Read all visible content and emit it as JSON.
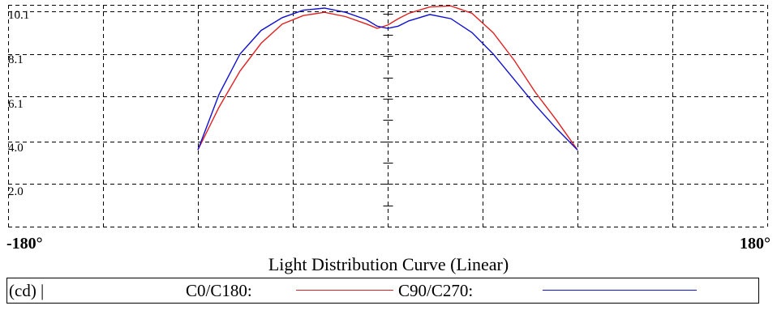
{
  "chart_data": {
    "type": "line",
    "title": "Light Distribution Curve (Linear)",
    "xlabel": "",
    "ylabel": "",
    "unit": "(cd) |",
    "x_tick_labels": [
      "-180°",
      "180°"
    ],
    "xlim": [
      -180,
      180
    ],
    "y_tick_labels": [
      "10.1",
      "8.1",
      "6.1",
      "4.0",
      "2.0"
    ],
    "y_ticks": [
      10.1,
      8.1,
      6.1,
      4.0,
      2.0
    ],
    "ylim": [
      0,
      10.4
    ],
    "grid": true,
    "legend_position": "bottom",
    "series": [
      {
        "name": "C0/C180:",
        "color": "#e02020",
        "x": [
          -90,
          -80,
          -70,
          -60,
          -50,
          -40,
          -30,
          -20,
          -10,
          -5,
          0,
          5,
          10,
          20,
          30,
          40,
          50,
          60,
          70,
          80,
          90
        ],
        "y": [
          3.6,
          5.6,
          7.3,
          8.6,
          9.5,
          9.9,
          10.05,
          9.85,
          9.5,
          9.3,
          9.45,
          9.75,
          10.0,
          10.3,
          10.35,
          10.0,
          9.1,
          7.8,
          6.3,
          5.0,
          3.6
        ]
      },
      {
        "name": "C90/C270:",
        "color": "#1010d0",
        "x": [
          -90,
          -80,
          -70,
          -60,
          -50,
          -40,
          -30,
          -20,
          -10,
          -5,
          0,
          5,
          10,
          20,
          30,
          40,
          50,
          60,
          70,
          80,
          90
        ],
        "y": [
          3.6,
          6.2,
          8.1,
          9.2,
          9.8,
          10.15,
          10.25,
          10.05,
          9.7,
          9.4,
          9.3,
          9.4,
          9.65,
          9.95,
          9.75,
          9.1,
          8.1,
          6.9,
          5.7,
          4.6,
          3.6
        ]
      }
    ]
  }
}
